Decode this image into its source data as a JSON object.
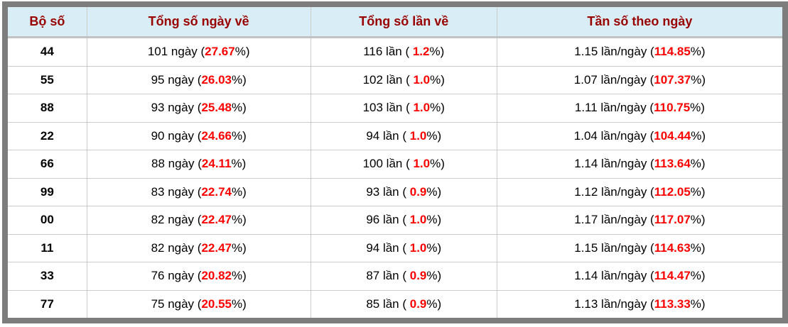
{
  "colors": {
    "header_bg": "#d9edf7",
    "header_text": "#990000",
    "highlight_red": "#fe0000",
    "frame_gray": "#7d7d7d",
    "row_border": "#cccccc",
    "body_text": "#000000"
  },
  "table": {
    "columns": [
      {
        "label": "Bộ số"
      },
      {
        "label": "Tổng số ngày về"
      },
      {
        "label": "Tổng số lần về"
      },
      {
        "label": "Tần số theo ngày"
      }
    ],
    "rows": [
      {
        "pair": "44",
        "days_prefix": "101 ngày (",
        "days_value": "27.67",
        "days_suffix": "%)",
        "times_prefix": "116 lần ( ",
        "times_value": "1.2",
        "times_suffix": "%)",
        "freq_prefix": "1.15 lần/ngày (",
        "freq_value": "114.85",
        "freq_suffix": "%)"
      },
      {
        "pair": "55",
        "days_prefix": "95 ngày (",
        "days_value": "26.03",
        "days_suffix": "%)",
        "times_prefix": "102 lần ( ",
        "times_value": "1.0",
        "times_suffix": "%)",
        "freq_prefix": "1.07 lần/ngày (",
        "freq_value": "107.37",
        "freq_suffix": "%)"
      },
      {
        "pair": "88",
        "days_prefix": "93 ngày (",
        "days_value": "25.48",
        "days_suffix": "%)",
        "times_prefix": "103 lần ( ",
        "times_value": "1.0",
        "times_suffix": "%)",
        "freq_prefix": "1.11 lần/ngày (",
        "freq_value": "110.75",
        "freq_suffix": "%)"
      },
      {
        "pair": "22",
        "days_prefix": "90 ngày (",
        "days_value": "24.66",
        "days_suffix": "%)",
        "times_prefix": "94 lần ( ",
        "times_value": "1.0",
        "times_suffix": "%)",
        "freq_prefix": "1.04 lần/ngày (",
        "freq_value": "104.44",
        "freq_suffix": "%)"
      },
      {
        "pair": "66",
        "days_prefix": "88 ngày (",
        "days_value": "24.11",
        "days_suffix": "%)",
        "times_prefix": "100 lần ( ",
        "times_value": "1.0",
        "times_suffix": "%)",
        "freq_prefix": "1.14 lần/ngày (",
        "freq_value": "113.64",
        "freq_suffix": "%)"
      },
      {
        "pair": "99",
        "days_prefix": "83 ngày (",
        "days_value": "22.74",
        "days_suffix": "%)",
        "times_prefix": "93 lần ( ",
        "times_value": "0.9",
        "times_suffix": "%)",
        "freq_prefix": "1.12 lần/ngày (",
        "freq_value": "112.05",
        "freq_suffix": "%)"
      },
      {
        "pair": "00",
        "days_prefix": "82 ngày (",
        "days_value": "22.47",
        "days_suffix": "%)",
        "times_prefix": "96 lần ( ",
        "times_value": "1.0",
        "times_suffix": "%)",
        "freq_prefix": "1.17 lần/ngày (",
        "freq_value": "117.07",
        "freq_suffix": "%)"
      },
      {
        "pair": "11",
        "days_prefix": "82 ngày (",
        "days_value": "22.47",
        "days_suffix": "%)",
        "times_prefix": "94 lần ( ",
        "times_value": "1.0",
        "times_suffix": "%)",
        "freq_prefix": "1.15 lần/ngày (",
        "freq_value": "114.63",
        "freq_suffix": "%)"
      },
      {
        "pair": "33",
        "days_prefix": "76 ngày (",
        "days_value": "20.82",
        "days_suffix": "%)",
        "times_prefix": "87 lần ( ",
        "times_value": "0.9",
        "times_suffix": "%)",
        "freq_prefix": "1.14 lần/ngày (",
        "freq_value": "114.47",
        "freq_suffix": "%)"
      },
      {
        "pair": "77",
        "days_prefix": "75 ngày (",
        "days_value": "20.55",
        "days_suffix": "%)",
        "times_prefix": "85 lần ( ",
        "times_value": "0.9",
        "times_suffix": "%)",
        "freq_prefix": "1.13 lần/ngày (",
        "freq_value": "113.33",
        "freq_suffix": "%)"
      }
    ]
  }
}
